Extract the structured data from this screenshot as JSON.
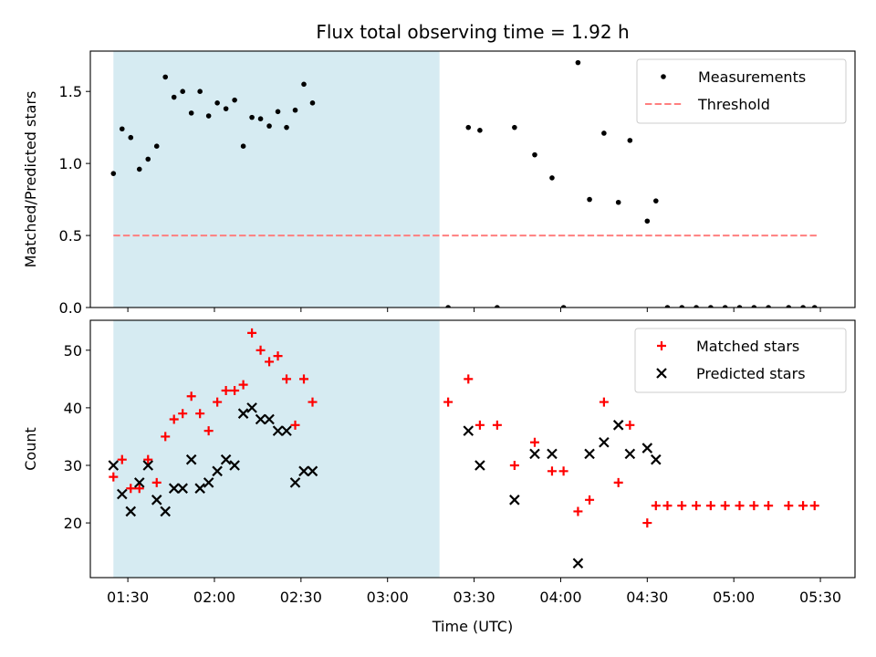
{
  "chart_data": {
    "title": "Flux total observing time = 1.92 h",
    "xlabel": "Time (UTC)",
    "x_tick_labels": [
      "01:30",
      "02:00",
      "02:30",
      "03:00",
      "03:30",
      "04:00",
      "04:30",
      "05:00",
      "05:30"
    ],
    "x_range": [
      "01:17",
      "05:42"
    ],
    "shaded_interval": [
      "01:25",
      "03:18"
    ],
    "shade_color": "#add8e6",
    "panels": [
      {
        "type": "scatter",
        "ylabel": "Matched/Predicted stars",
        "ylim": [
          0,
          1.78
        ],
        "y_ticks": [
          0.0,
          0.5,
          1.0,
          1.5
        ],
        "y_tick_labels": [
          "0.0",
          "0.5",
          "1.0",
          "1.5"
        ],
        "legend_position": "upper right",
        "threshold": {
          "name": "Threshold",
          "value": 0.5,
          "x": [
            "01:25",
            "05:29"
          ],
          "color": "#ff7f7f",
          "style": "dashed"
        },
        "series": [
          {
            "name": "Measurements",
            "color": "#000000",
            "marker": "dot",
            "points": [
              [
                "01:25",
                0.93
              ],
              [
                "01:28",
                1.24
              ],
              [
                "01:31",
                1.18
              ],
              [
                "01:34",
                0.96
              ],
              [
                "01:37",
                1.03
              ],
              [
                "01:40",
                1.12
              ],
              [
                "01:43",
                1.6
              ],
              [
                "01:46",
                1.46
              ],
              [
                "01:49",
                1.5
              ],
              [
                "01:52",
                1.35
              ],
              [
                "01:55",
                1.5
              ],
              [
                "01:58",
                1.33
              ],
              [
                "02:01",
                1.42
              ],
              [
                "02:04",
                1.38
              ],
              [
                "02:07",
                1.44
              ],
              [
                "02:10",
                1.12
              ],
              [
                "02:13",
                1.32
              ],
              [
                "02:16",
                1.31
              ],
              [
                "02:19",
                1.26
              ],
              [
                "02:22",
                1.36
              ],
              [
                "02:25",
                1.25
              ],
              [
                "02:28",
                1.37
              ],
              [
                "02:31",
                1.55
              ],
              [
                "02:34",
                1.42
              ],
              [
                "03:21",
                0.0
              ],
              [
                "03:28",
                1.25
              ],
              [
                "03:32",
                1.23
              ],
              [
                "03:38",
                0.0
              ],
              [
                "03:44",
                1.25
              ],
              [
                "03:51",
                1.06
              ],
              [
                "03:57",
                0.9
              ],
              [
                "04:01",
                0.0
              ],
              [
                "04:06",
                1.7
              ],
              [
                "04:10",
                0.75
              ],
              [
                "04:15",
                1.21
              ],
              [
                "04:20",
                0.73
              ],
              [
                "04:24",
                1.16
              ],
              [
                "04:30",
                0.6
              ],
              [
                "04:33",
                0.74
              ],
              [
                "04:37",
                0.0
              ],
              [
                "04:42",
                0.0
              ],
              [
                "04:47",
                0.0
              ],
              [
                "04:52",
                0.0
              ],
              [
                "04:57",
                0.0
              ],
              [
                "05:02",
                0.0
              ],
              [
                "05:07",
                0.0
              ],
              [
                "05:12",
                0.0
              ],
              [
                "05:19",
                0.0
              ],
              [
                "05:24",
                0.0
              ],
              [
                "05:28",
                0.0
              ]
            ]
          }
        ]
      },
      {
        "type": "scatter",
        "ylabel": "Count",
        "ylim": [
          10.5,
          55.2
        ],
        "y_ticks": [
          20,
          30,
          40,
          50
        ],
        "y_tick_labels": [
          "20",
          "30",
          "40",
          "50"
        ],
        "legend_position": "upper right",
        "series": [
          {
            "name": "Matched stars",
            "color": "#ff0000",
            "marker": "plus",
            "points": [
              [
                "01:25",
                28
              ],
              [
                "01:28",
                31
              ],
              [
                "01:31",
                26
              ],
              [
                "01:34",
                26
              ],
              [
                "01:37",
                31
              ],
              [
                "01:40",
                27
              ],
              [
                "01:43",
                35
              ],
              [
                "01:46",
                38
              ],
              [
                "01:49",
                39
              ],
              [
                "01:52",
                42
              ],
              [
                "01:55",
                39
              ],
              [
                "01:58",
                36
              ],
              [
                "02:01",
                41
              ],
              [
                "02:04",
                43
              ],
              [
                "02:07",
                43
              ],
              [
                "02:10",
                44
              ],
              [
                "02:13",
                53
              ],
              [
                "02:16",
                50
              ],
              [
                "02:19",
                48
              ],
              [
                "02:22",
                49
              ],
              [
                "02:25",
                45
              ],
              [
                "02:28",
                37
              ],
              [
                "02:31",
                45
              ],
              [
                "02:34",
                41
              ],
              [
                "03:21",
                41
              ],
              [
                "03:28",
                45
              ],
              [
                "03:32",
                37
              ],
              [
                "03:38",
                37
              ],
              [
                "03:44",
                30
              ],
              [
                "03:51",
                34
              ],
              [
                "03:57",
                29
              ],
              [
                "04:01",
                29
              ],
              [
                "04:06",
                22
              ],
              [
                "04:10",
                24
              ],
              [
                "04:15",
                41
              ],
              [
                "04:20",
                27
              ],
              [
                "04:24",
                37
              ],
              [
                "04:30",
                20
              ],
              [
                "04:33",
                23
              ],
              [
                "04:37",
                23
              ],
              [
                "04:42",
                23
              ],
              [
                "04:47",
                23
              ],
              [
                "04:52",
                23
              ],
              [
                "04:57",
                23
              ],
              [
                "05:02",
                23
              ],
              [
                "05:07",
                23
              ],
              [
                "05:12",
                23
              ],
              [
                "05:19",
                23
              ],
              [
                "05:24",
                23
              ],
              [
                "05:28",
                23
              ]
            ]
          },
          {
            "name": "Predicted stars",
            "color": "#000000",
            "marker": "x",
            "points": [
              [
                "01:25",
                30
              ],
              [
                "01:28",
                25
              ],
              [
                "01:31",
                22
              ],
              [
                "01:34",
                27
              ],
              [
                "01:37",
                30
              ],
              [
                "01:40",
                24
              ],
              [
                "01:43",
                22
              ],
              [
                "01:46",
                26
              ],
              [
                "01:49",
                26
              ],
              [
                "01:52",
                31
              ],
              [
                "01:55",
                26
              ],
              [
                "01:58",
                27
              ],
              [
                "02:01",
                29
              ],
              [
                "02:04",
                31
              ],
              [
                "02:07",
                30
              ],
              [
                "02:10",
                39
              ],
              [
                "02:13",
                40
              ],
              [
                "02:16",
                38
              ],
              [
                "02:19",
                38
              ],
              [
                "02:22",
                36
              ],
              [
                "02:25",
                36
              ],
              [
                "02:28",
                27
              ],
              [
                "02:31",
                29
              ],
              [
                "02:34",
                29
              ],
              [
                "03:28",
                36
              ],
              [
                "03:32",
                30
              ],
              [
                "03:44",
                24
              ],
              [
                "03:51",
                32
              ],
              [
                "03:57",
                32
              ],
              [
                "04:06",
                13
              ],
              [
                "04:10",
                32
              ],
              [
                "04:15",
                34
              ],
              [
                "04:20",
                37
              ],
              [
                "04:24",
                32
              ],
              [
                "04:30",
                33
              ],
              [
                "04:33",
                31
              ]
            ]
          }
        ]
      }
    ]
  }
}
